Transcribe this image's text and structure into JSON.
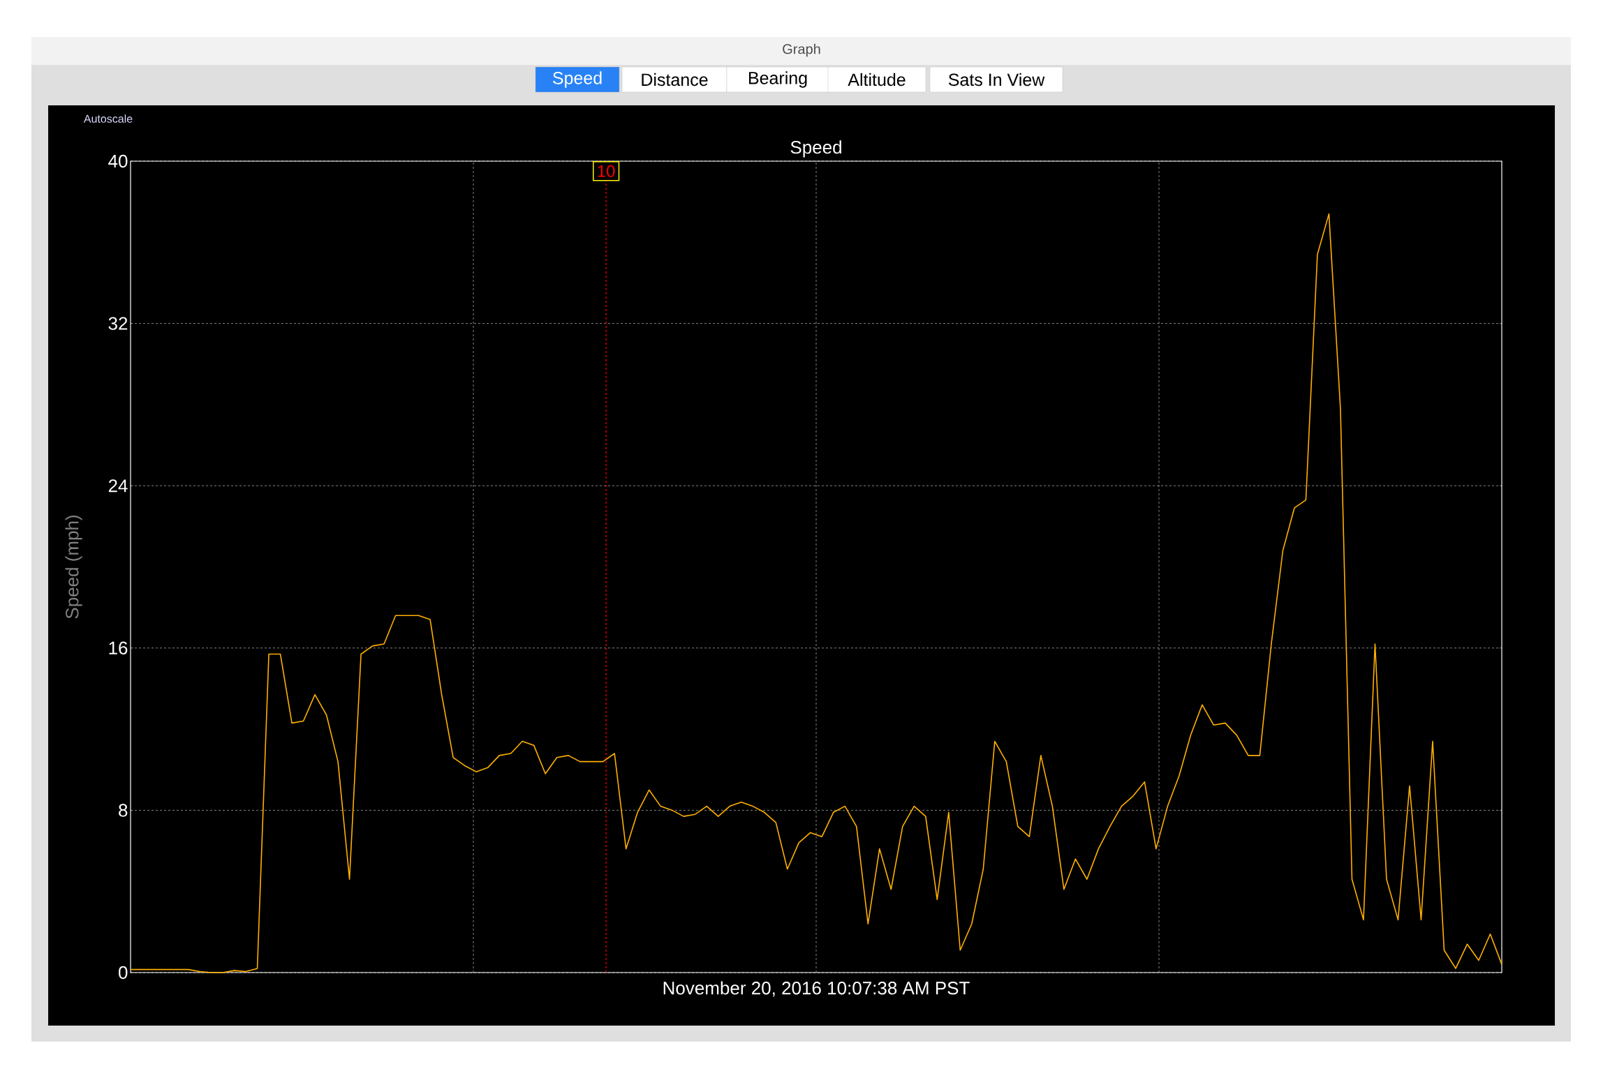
{
  "chart_data": {
    "type": "line",
    "title": "Speed",
    "xlabel": "November 20, 2016 10:07:38 AM PST",
    "ylabel": "Speed (mph)",
    "categories": [
      null,
      null,
      null,
      null,
      null,
      null,
      null,
      null,
      null,
      null,
      null,
      null,
      null,
      null,
      null,
      null,
      null,
      null,
      null,
      null,
      null,
      null,
      null,
      null,
      null,
      null,
      null,
      null,
      null,
      null,
      null,
      null,
      null,
      null,
      null,
      null,
      null,
      null,
      null,
      null,
      null,
      null,
      null,
      null,
      null,
      null,
      null,
      null,
      null,
      null,
      null,
      null,
      null,
      null,
      null,
      null,
      null,
      null,
      null,
      null,
      null,
      null,
      null,
      null,
      null,
      null,
      null,
      null,
      null,
      null,
      null,
      null,
      null,
      null,
      null,
      null,
      null,
      null,
      null,
      null,
      null,
      null,
      null,
      null,
      null,
      null,
      null,
      null,
      null,
      null,
      null,
      null,
      null,
      null,
      null,
      null,
      null,
      null,
      null,
      null,
      null,
      null,
      null,
      null,
      null,
      null,
      null,
      null,
      null,
      null,
      null,
      null,
      null,
      null,
      null,
      null,
      null,
      null,
      null,
      null
    ],
    "series": [
      {
        "color": "#ffb000",
        "values": [
          0.15,
          0.15,
          0.15,
          0.15,
          0.15,
          0.15,
          0.05,
          0,
          0,
          0.1,
          0.05,
          0.2,
          15.7,
          15.7,
          12.3,
          12.4,
          13.7,
          12.7,
          10.4,
          4.6,
          15.7,
          16.1,
          16.2,
          17.6,
          17.6,
          17.6,
          17.4,
          13.7,
          10.6,
          10.2,
          9.9,
          10.1,
          10.7,
          10.8,
          11.4,
          11.2,
          9.8,
          10.6,
          10.7,
          10.4,
          10.4,
          10.4,
          10.8,
          6.1,
          7.9,
          9.0,
          8.2,
          8.0,
          7.7,
          7.8,
          8.2,
          7.7,
          8.2,
          8.4,
          8.2,
          7.9,
          7.4,
          5.1,
          6.4,
          6.9,
          6.7,
          7.9,
          8.2,
          7.2,
          2.4,
          6.1,
          4.1,
          7.2,
          8.2,
          7.7,
          3.6,
          7.9,
          1.1,
          2.4,
          5.1,
          11.4,
          10.4,
          7.2,
          6.7,
          10.7,
          8.2,
          4.1,
          5.6,
          4.6,
          6.1,
          7.2,
          8.2,
          8.7,
          9.4,
          6.1,
          8.2,
          9.7,
          11.7,
          13.2,
          12.2,
          12.3,
          11.7,
          10.7,
          10.7,
          16.2,
          20.8,
          22.9,
          23.3,
          35.4,
          37.4,
          27.8,
          4.6,
          2.6,
          16.2,
          4.6,
          2.6,
          9.2,
          2.6,
          11.4,
          1.1,
          0.2,
          1.4,
          0.6,
          1.9,
          0.4
        ]
      }
    ],
    "ylim": [
      0,
      40
    ],
    "yticks": [
      0,
      8,
      16,
      24,
      32,
      40
    ],
    "grid": true,
    "annotations": [
      "Graph",
      "Speed",
      "Distance",
      "Bearing",
      "Altitude",
      "Sats In View",
      "Autoscale",
      "10"
    ]
  }
}
